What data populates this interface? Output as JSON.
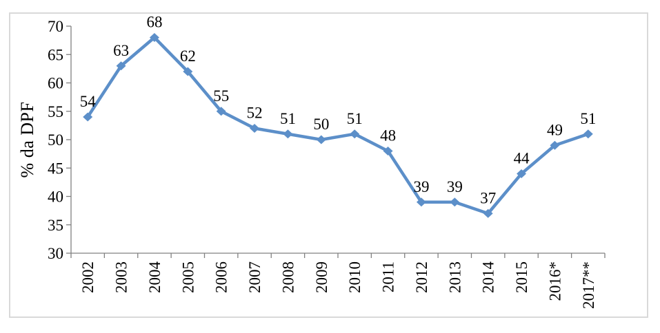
{
  "chart_data": {
    "type": "line",
    "title": "",
    "xlabel": "",
    "ylabel": "% da DPF",
    "categories": [
      "2002",
      "2003",
      "2004",
      "2005",
      "2006",
      "2007",
      "2008",
      "2009",
      "2010",
      "2011",
      "2012",
      "2013",
      "2014",
      "2015",
      "2016*",
      "2017**"
    ],
    "values": [
      54,
      63,
      68,
      62,
      55,
      52,
      51,
      50,
      51,
      48,
      39,
      39,
      37,
      44,
      49,
      51
    ],
    "data_labels": [
      "54",
      "63",
      "68",
      "62",
      "55",
      "52",
      "51",
      "50",
      "51",
      "48",
      "39",
      "39",
      "37",
      "44",
      "49",
      "51"
    ],
    "ylim": [
      30,
      70
    ],
    "yticks": [
      30,
      35,
      40,
      45,
      50,
      55,
      60,
      65,
      70
    ],
    "grid": false,
    "legend": "none",
    "marker_shape": "diamond",
    "colors": {
      "line": "#5c8fc9",
      "marker": "#5c8fc9",
      "axis": "#808080",
      "text": "#000000",
      "frame_border": "#d9d9d9",
      "background": "#ffffff"
    }
  }
}
